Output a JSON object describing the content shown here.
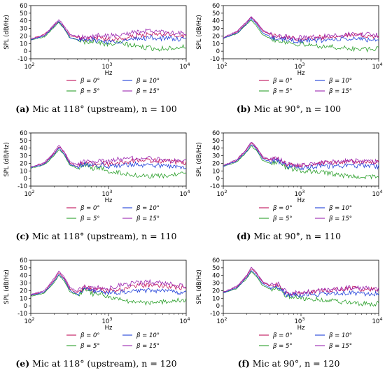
{
  "chart_data": [
    {
      "type": "line",
      "panel_label": "(a)",
      "caption": "Mic at 118° (upstream), n = 100",
      "xlabel": "Hz",
      "ylabel": "SPL (dB/Hz)",
      "xscale": "log",
      "xlim": [
        100,
        10000
      ],
      "ylim": [
        -10,
        60
      ],
      "yticks": [
        -10,
        0,
        10,
        20,
        30,
        40,
        50,
        60
      ],
      "xticks": [
        {
          "base": "10",
          "exp": "2"
        },
        {
          "base": "10",
          "exp": "3"
        },
        {
          "base": "10",
          "exp": "4"
        }
      ],
      "grid": false,
      "legend_placement": "below",
      "x": [
        100,
        150,
        200,
        230,
        270,
        320,
        400,
        500,
        650,
        800,
        1000,
        1300,
        1700,
        2200,
        2800,
        3500,
        4500,
        6000,
        7500,
        10000
      ],
      "series": [
        {
          "name": "β = 0°",
          "color": "#c0105a",
          "values": [
            16,
            22,
            34,
            40,
            31,
            20,
            18,
            16,
            17,
            18,
            15,
            16,
            17,
            20,
            21,
            22,
            22,
            22,
            21,
            20
          ]
        },
        {
          "name": "β = 5°",
          "color": "#2ca02c",
          "values": [
            15,
            19,
            32,
            38,
            29,
            17,
            15,
            12,
            14,
            11,
            8,
            11,
            9,
            7,
            5,
            4,
            3,
            4,
            5,
            6
          ]
        },
        {
          "name": "β = 10°",
          "color": "#1f3fd9",
          "values": [
            15,
            20,
            33,
            39,
            30,
            18,
            16,
            13,
            15,
            14,
            12,
            13,
            14,
            16,
            17,
            18,
            17,
            17,
            16,
            15
          ]
        },
        {
          "name": "β = 15°",
          "color": "#9c27b0",
          "values": [
            16,
            21,
            35,
            42,
            33,
            22,
            19,
            18,
            19,
            22,
            20,
            21,
            23,
            25,
            26,
            27,
            26,
            25,
            24,
            23
          ]
        }
      ]
    },
    {
      "type": "line",
      "panel_label": "(b)",
      "caption": "Mic at 90°, n = 100",
      "xlabel": "Hz",
      "ylabel": "SPL (dB/Hz)",
      "xscale": "log",
      "xlim": [
        100,
        10000
      ],
      "ylim": [
        -10,
        60
      ],
      "yticks": [
        -10,
        0,
        10,
        20,
        30,
        40,
        50,
        60
      ],
      "xticks": [
        {
          "base": "10",
          "exp": "2"
        },
        {
          "base": "10",
          "exp": "3"
        },
        {
          "base": "10",
          "exp": "4"
        }
      ],
      "grid": false,
      "legend_placement": "below",
      "x": [
        100,
        150,
        200,
        230,
        270,
        320,
        400,
        500,
        650,
        800,
        1000,
        1300,
        1700,
        2200,
        2800,
        3500,
        4500,
        6000,
        7500,
        10000
      ],
      "series": [
        {
          "name": "β = 0°",
          "color": "#c0105a",
          "values": [
            18,
            25,
            38,
            45,
            37,
            27,
            22,
            19,
            18,
            17,
            16,
            17,
            18,
            19,
            20,
            21,
            21,
            21,
            20,
            20
          ]
        },
        {
          "name": "β = 5°",
          "color": "#2ca02c",
          "values": [
            17,
            23,
            35,
            41,
            33,
            22,
            17,
            14,
            12,
            10,
            9,
            8,
            7,
            6,
            5,
            4,
            3,
            3,
            2,
            3
          ]
        },
        {
          "name": "β = 10°",
          "color": "#1f3fd9",
          "values": [
            17,
            24,
            36,
            43,
            35,
            24,
            19,
            16,
            15,
            14,
            13,
            14,
            14,
            15,
            15,
            16,
            16,
            16,
            15,
            15
          ]
        },
        {
          "name": "β = 15°",
          "color": "#9c27b0",
          "values": [
            18,
            26,
            39,
            46,
            38,
            28,
            23,
            20,
            19,
            18,
            18,
            18,
            19,
            20,
            21,
            22,
            22,
            22,
            22,
            21
          ]
        }
      ]
    },
    {
      "type": "line",
      "panel_label": "(c)",
      "caption": "Mic at 118° (upstream), n = 110",
      "xlabel": "Hz",
      "ylabel": "SPL (dB/Hz)",
      "xscale": "log",
      "xlim": [
        100,
        10000
      ],
      "ylim": [
        -10,
        60
      ],
      "yticks": [
        -10,
        0,
        10,
        20,
        30,
        40,
        50,
        60
      ],
      "xticks": [
        {
          "base": "10",
          "exp": "2"
        },
        {
          "base": "10",
          "exp": "3"
        },
        {
          "base": "10",
          "exp": "4"
        }
      ],
      "grid": false,
      "legend_placement": "below",
      "x": [
        100,
        150,
        200,
        230,
        270,
        320,
        400,
        500,
        650,
        800,
        1000,
        1300,
        1700,
        2200,
        2800,
        3500,
        4500,
        6000,
        7500,
        10000
      ],
      "series": [
        {
          "name": "β = 0°",
          "color": "#c0105a",
          "values": [
            15,
            20,
            33,
            42,
            34,
            20,
            16,
            22,
            18,
            21,
            18,
            20,
            22,
            24,
            24,
            24,
            23,
            22,
            21,
            20
          ]
        },
        {
          "name": "β = 5°",
          "color": "#2ca02c",
          "values": [
            14,
            18,
            30,
            38,
            31,
            17,
            13,
            18,
            13,
            14,
            10,
            8,
            6,
            5,
            3,
            3,
            3,
            4,
            5,
            6
          ]
        },
        {
          "name": "β = 10°",
          "color": "#1f3fd9",
          "values": [
            14,
            19,
            32,
            40,
            32,
            19,
            15,
            20,
            16,
            18,
            16,
            17,
            18,
            19,
            18,
            18,
            17,
            16,
            15,
            15
          ]
        },
        {
          "name": "β = 15°",
          "color": "#9c27b0",
          "values": [
            15,
            21,
            35,
            44,
            35,
            22,
            18,
            23,
            20,
            24,
            22,
            25,
            26,
            27,
            27,
            26,
            25,
            24,
            24,
            23
          ]
        }
      ]
    },
    {
      "type": "line",
      "panel_label": "(d)",
      "caption": "Mic at 90°, n = 110",
      "xlabel": "Hz",
      "ylabel": "SPL (dB/Hz)",
      "xscale": "log",
      "xlim": [
        100,
        10000
      ],
      "ylim": [
        -10,
        60
      ],
      "yticks": [
        -10,
        0,
        10,
        20,
        30,
        40,
        50,
        60
      ],
      "xticks": [
        {
          "base": "10",
          "exp": "2"
        },
        {
          "base": "10",
          "exp": "3"
        },
        {
          "base": "10",
          "exp": "4"
        }
      ],
      "grid": false,
      "legend_placement": "below",
      "x": [
        100,
        150,
        200,
        230,
        270,
        320,
        400,
        500,
        650,
        800,
        1000,
        1300,
        1700,
        2200,
        2800,
        3500,
        4500,
        6000,
        7500,
        10000
      ],
      "series": [
        {
          "name": "β = 0°",
          "color": "#c0105a",
          "values": [
            17,
            24,
            38,
            47,
            40,
            28,
            24,
            26,
            18,
            17,
            17,
            18,
            19,
            20,
            21,
            22,
            22,
            22,
            21,
            21
          ]
        },
        {
          "name": "β = 5°",
          "color": "#2ca02c",
          "values": [
            16,
            22,
            35,
            43,
            36,
            24,
            20,
            22,
            14,
            12,
            10,
            9,
            8,
            7,
            5,
            4,
            3,
            2,
            2,
            3
          ]
        },
        {
          "name": "β = 10°",
          "color": "#1f3fd9",
          "values": [
            16,
            23,
            36,
            45,
            38,
            26,
            22,
            24,
            16,
            15,
            14,
            15,
            16,
            16,
            17,
            17,
            17,
            17,
            16,
            16
          ]
        },
        {
          "name": "β = 15°",
          "color": "#9c27b0",
          "values": [
            17,
            25,
            39,
            48,
            41,
            29,
            25,
            27,
            19,
            18,
            18,
            19,
            20,
            21,
            22,
            23,
            23,
            23,
            22,
            22
          ]
        }
      ]
    },
    {
      "type": "line",
      "panel_label": "(e)",
      "caption": "Mic at 118° (upstream), n = 120",
      "xlabel": "Hz",
      "ylabel": "SPL (dB/Hz)",
      "xscale": "log",
      "xlim": [
        100,
        10000
      ],
      "ylim": [
        -10,
        60
      ],
      "yticks": [
        -10,
        0,
        10,
        20,
        30,
        40,
        50,
        60
      ],
      "xticks": [
        {
          "base": "10",
          "exp": "2"
        },
        {
          "base": "10",
          "exp": "3"
        },
        {
          "base": "10",
          "exp": "4"
        }
      ],
      "grid": false,
      "legend_placement": "below",
      "x": [
        100,
        150,
        200,
        230,
        270,
        320,
        400,
        500,
        650,
        800,
        1000,
        1300,
        1700,
        2200,
        2800,
        3500,
        4500,
        6000,
        7500,
        10000
      ],
      "series": [
        {
          "name": "β = 0°",
          "color": "#c0105a",
          "values": [
            14,
            19,
            34,
            44,
            36,
            22,
            17,
            25,
            20,
            22,
            19,
            21,
            23,
            26,
            27,
            28,
            27,
            26,
            24,
            23
          ]
        },
        {
          "name": "β = 5°",
          "color": "#2ca02c",
          "values": [
            13,
            17,
            31,
            40,
            33,
            18,
            14,
            21,
            15,
            16,
            12,
            9,
            7,
            5,
            4,
            4,
            5,
            6,
            7,
            8
          ]
        },
        {
          "name": "β = 10°",
          "color": "#1f3fd9",
          "values": [
            14,
            18,
            32,
            42,
            34,
            20,
            15,
            23,
            18,
            19,
            17,
            18,
            19,
            20,
            20,
            21,
            20,
            19,
            18,
            18
          ]
        },
        {
          "name": "β = 15°",
          "color": "#9c27b0",
          "values": [
            15,
            20,
            36,
            46,
            38,
            24,
            19,
            27,
            22,
            25,
            23,
            26,
            28,
            30,
            31,
            31,
            30,
            29,
            27,
            26
          ]
        }
      ]
    },
    {
      "type": "line",
      "panel_label": "(f)",
      "caption": "Mic at 90°, n = 120",
      "xlabel": "Hz",
      "ylabel": "SPL (dB/Hz)",
      "xscale": "log",
      "xlim": [
        100,
        10000
      ],
      "ylim": [
        -10,
        60
      ],
      "yticks": [
        -10,
        0,
        10,
        20,
        30,
        40,
        50,
        60
      ],
      "xticks": [
        {
          "base": "10",
          "exp": "2"
        },
        {
          "base": "10",
          "exp": "3"
        },
        {
          "base": "10",
          "exp": "4"
        }
      ],
      "grid": false,
      "legend_placement": "below",
      "x": [
        100,
        150,
        200,
        230,
        270,
        320,
        400,
        500,
        650,
        800,
        1000,
        1300,
        1700,
        2200,
        2800,
        3500,
        4500,
        6000,
        7500,
        10000
      ],
      "series": [
        {
          "name": "β = 0°",
          "color": "#c0105a",
          "values": [
            18,
            25,
            39,
            49,
            42,
            31,
            26,
            28,
            17,
            16,
            17,
            18,
            19,
            20,
            21,
            22,
            23,
            22,
            22,
            21
          ]
        },
        {
          "name": "β = 5°",
          "color": "#2ca02c",
          "values": [
            17,
            23,
            36,
            45,
            38,
            27,
            22,
            24,
            13,
            11,
            10,
            9,
            8,
            7,
            6,
            5,
            4,
            3,
            2,
            3
          ]
        },
        {
          "name": "β = 10°",
          "color": "#1f3fd9",
          "values": [
            17,
            24,
            37,
            47,
            40,
            29,
            24,
            26,
            15,
            14,
            14,
            15,
            15,
            16,
            16,
            17,
            17,
            16,
            16,
            16
          ]
        },
        {
          "name": "β = 15°",
          "color": "#9c27b0",
          "values": [
            18,
            26,
            40,
            51,
            43,
            32,
            27,
            29,
            18,
            17,
            18,
            19,
            20,
            21,
            22,
            23,
            24,
            23,
            23,
            22
          ]
        }
      ]
    }
  ]
}
